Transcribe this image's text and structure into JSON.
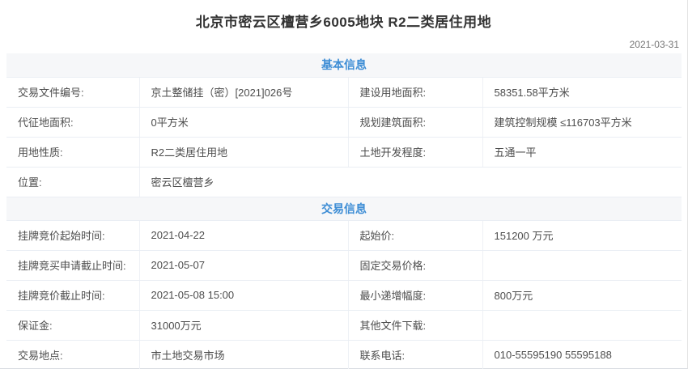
{
  "header": {
    "title": "北京市密云区檀营乡6005地块 R2二类居住用地",
    "date": "2021-03-31"
  },
  "colors": {
    "section_header_text": "#3d8dd5",
    "section_header_bg": "#f6f7f9",
    "row_border": "#eaeef4",
    "title_text": "#333333",
    "body_text": "#4d4d4d",
    "date_text": "#757575"
  },
  "basic_info": {
    "section_title": "基本信息",
    "rows": [
      {
        "cells": [
          {
            "label": "交易文件编号:",
            "value": "京土整储挂（密）[2021]026号"
          },
          {
            "label": "建设用地面积:",
            "value": "58351.58平方米"
          }
        ]
      },
      {
        "cells": [
          {
            "label": "代征地面积:",
            "value": "0平方米"
          },
          {
            "label": "规划建筑面积:",
            "value": "建筑控制规模 ≤116703平方米"
          }
        ]
      },
      {
        "cells": [
          {
            "label": "用地性质:",
            "value": "R2二类居住用地"
          },
          {
            "label": "土地开发程度:",
            "value": "五通一平"
          }
        ]
      },
      {
        "cells": [
          {
            "label": "位置:",
            "value": "密云区檀营乡"
          }
        ]
      }
    ]
  },
  "trade_info": {
    "section_title": "交易信息",
    "rows": [
      {
        "cells": [
          {
            "label": "挂牌竞价起始时间:",
            "value": "2021-04-22"
          },
          {
            "label": "起始价:",
            "value": "151200 万元"
          }
        ]
      },
      {
        "cells": [
          {
            "label": "挂牌竞买申请截止时间:",
            "value": "2021-05-07"
          },
          {
            "label": "固定交易价格:",
            "value": ""
          }
        ]
      },
      {
        "cells": [
          {
            "label": "挂牌竞价截止时间:",
            "value": "2021-05-08 15:00"
          },
          {
            "label": "最小递增幅度:",
            "value": "800万元"
          }
        ]
      },
      {
        "cells": [
          {
            "label": "保证金:",
            "value": "31000万元"
          },
          {
            "label": "其他文件下载:",
            "value": ""
          }
        ]
      },
      {
        "cells": [
          {
            "label": "交易地点:",
            "value": "市土地交易市场"
          },
          {
            "label": "联系电话:",
            "value": "010-55595190 55595188"
          }
        ]
      }
    ]
  }
}
